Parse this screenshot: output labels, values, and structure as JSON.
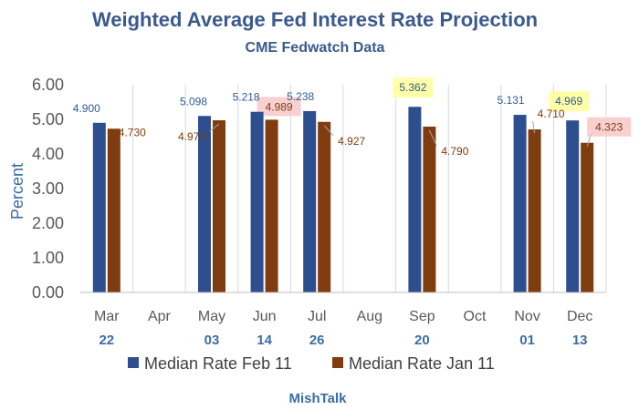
{
  "chart_data": {
    "type": "bar",
    "title": "Weighted Average Fed Interest Rate Projection",
    "subtitle": "CME Fedwatch Data",
    "ylabel": "Percent",
    "ylim": [
      0,
      6
    ],
    "yticks": [
      "0.00",
      "1.00",
      "2.00",
      "3.00",
      "4.00",
      "5.00",
      "6.00"
    ],
    "categories": [
      "Mar",
      "Apr",
      "May",
      "Jun",
      "Jul",
      "Aug",
      "Sep",
      "Oct",
      "Nov",
      "Dec"
    ],
    "dates": [
      "22",
      "",
      "03",
      "14",
      "26",
      "",
      "20",
      "",
      "01",
      "13"
    ],
    "series": [
      {
        "name": "Median Rate Feb 11",
        "color": "#2e4f8f",
        "label_color": "#2e5a96",
        "values": [
          4.9,
          null,
          5.098,
          5.218,
          5.238,
          null,
          5.362,
          null,
          5.131,
          4.969
        ],
        "labels": [
          "4.900",
          "",
          "5.098",
          "5.218",
          "5.238",
          "",
          "5.362",
          "",
          "5.131",
          "4.969"
        ]
      },
      {
        "name": "Median Rate Jan 11",
        "color": "#7f3c0f",
        "label_color": "#7f3c0f",
        "values": [
          4.73,
          null,
          4.973,
          4.989,
          4.927,
          null,
          4.79,
          null,
          4.71,
          4.323
        ],
        "labels": [
          "4.730",
          "",
          "4.973",
          "4.989",
          "4.927",
          "",
          "4.790",
          "",
          "4.710",
          "4.323"
        ]
      }
    ],
    "highlights": {
      "yellow": [
        "5.362",
        "4.969"
      ],
      "pink": [
        "4.989",
        "4.323"
      ]
    },
    "grid": "vertical category separators",
    "legend": "bottom"
  },
  "footer": "MishTalk"
}
